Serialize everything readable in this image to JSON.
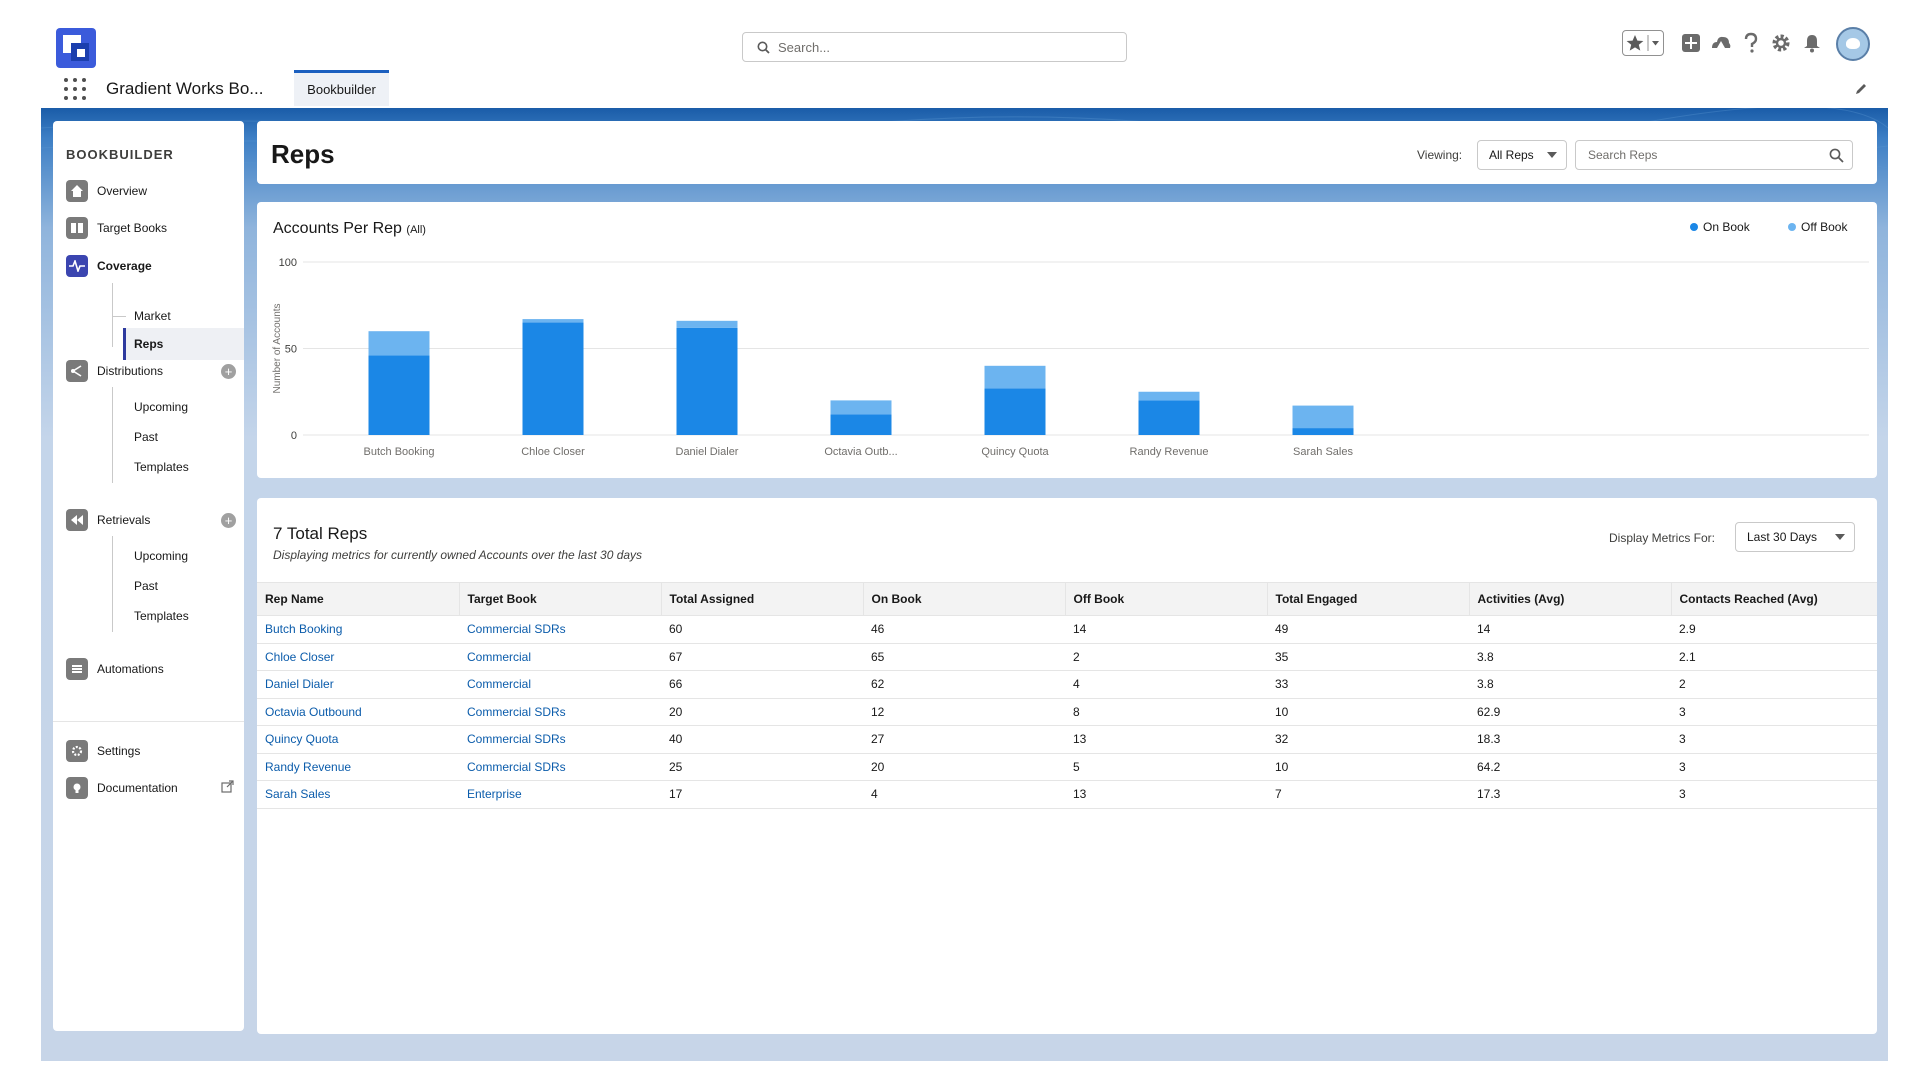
{
  "global": {
    "search_placeholder": "Search...",
    "app_name": "Gradient Works Bo...",
    "tab_label": "Bookbuilder"
  },
  "sidebar": {
    "title": "BOOKBUILDER",
    "items": {
      "overview": "Overview",
      "target_books": "Target Books",
      "coverage": "Coverage",
      "market": "Market",
      "reps": "Reps",
      "distributions": "Distributions",
      "dist_upcoming": "Upcoming",
      "dist_past": "Past",
      "dist_templates": "Templates",
      "retrievals": "Retrievals",
      "ret_upcoming": "Upcoming",
      "ret_past": "Past",
      "ret_templates": "Templates",
      "automations": "Automations",
      "settings": "Settings",
      "documentation": "Documentation"
    }
  },
  "header": {
    "title": "Reps",
    "viewing_label": "Viewing:",
    "viewing_value": "All Reps",
    "search_placeholder": "Search Reps"
  },
  "chart_data": {
    "type": "bar",
    "title": "Accounts Per Rep",
    "title_suffix": "(All)",
    "ylabel": "Number of Accounts",
    "xlabel": "",
    "ylim": [
      0,
      100
    ],
    "yticks": [
      "0",
      "50",
      "100"
    ],
    "categories": [
      "Butch Booking",
      "Chloe Closer",
      "Daniel Dialer",
      "Octavia Outb...",
      "Quincy Quota",
      "Randy Revenue",
      "Sarah Sales"
    ],
    "stacked": true,
    "series": [
      {
        "name": "On Book",
        "values": [
          46,
          65,
          62,
          12,
          27,
          20,
          4
        ],
        "color": "#1b87e6"
      },
      {
        "name": "Off Book",
        "values": [
          14,
          2,
          4,
          8,
          13,
          5,
          13
        ],
        "color": "#6cb4f0"
      }
    ],
    "legend": "top-right",
    "grid": true
  },
  "table": {
    "title": "7 Total Reps",
    "subtitle": "Displaying metrics for currently owned Accounts over the last 30 days",
    "metrics_label": "Display Metrics For:",
    "metrics_value": "Last 30 Days",
    "columns": [
      "Rep Name",
      "Target Book",
      "Total Assigned",
      "On Book",
      "Off Book",
      "Total Engaged",
      "Activities (Avg)",
      "Contacts Reached (Avg)"
    ],
    "rows": [
      [
        "Butch Booking",
        "Commercial SDRs",
        "60",
        "46",
        "14",
        "49",
        "14",
        "2.9"
      ],
      [
        "Chloe Closer",
        "Commercial",
        "67",
        "65",
        "2",
        "35",
        "3.8",
        "2.1"
      ],
      [
        "Daniel Dialer",
        "Commercial",
        "66",
        "62",
        "4",
        "33",
        "3.8",
        "2"
      ],
      [
        "Octavia Outbound",
        "Commercial SDRs",
        "20",
        "12",
        "8",
        "10",
        "62.9",
        "3"
      ],
      [
        "Quincy Quota",
        "Commercial SDRs",
        "40",
        "27",
        "13",
        "32",
        "18.3",
        "3"
      ],
      [
        "Randy Revenue",
        "Commercial SDRs",
        "25",
        "20",
        "5",
        "10",
        "64.2",
        "3"
      ],
      [
        "Sarah Sales",
        "Enterprise",
        "17",
        "4",
        "13",
        "7",
        "17.3",
        "3"
      ]
    ]
  },
  "icons": [
    "app-logo-icon",
    "search-icon",
    "star-icon",
    "plus-icon",
    "trailhead-icon",
    "help-icon",
    "gear-icon",
    "bell-icon",
    "avatar-icon",
    "waffle-icon",
    "pencil-icon",
    "home-icon",
    "book-icon",
    "coverage-icon",
    "distributions-icon",
    "retrievals-icon",
    "automations-icon",
    "settings-icon",
    "documentation-icon",
    "external-link-icon"
  ]
}
